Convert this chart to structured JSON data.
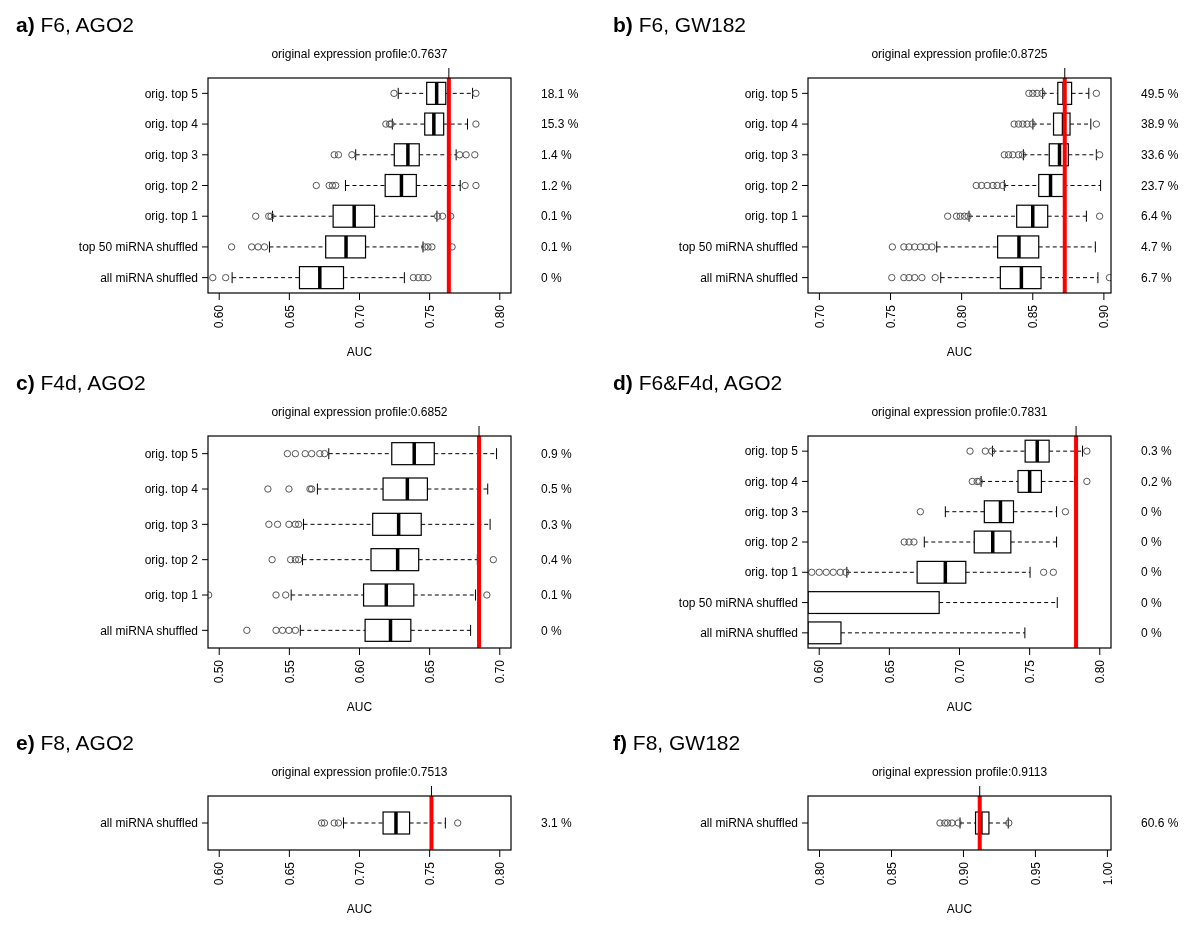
{
  "chart_data": [
    {
      "type": "box",
      "orientation": "horizontal",
      "title": "a) F6, AGO2",
      "subtitle": "original expression profile:0.7637",
      "xlabel": "AUC",
      "categories": [
        "orig. top 5",
        "orig. top 4",
        "orig. top 3",
        "orig. top 2",
        "orig. top 1",
        "top 50 miRNA shuffled",
        "all miRNA shuffled"
      ],
      "boxes": [
        {
          "low": 0.7276,
          "q1": 0.7479,
          "median": 0.755,
          "q3": 0.7615,
          "high": 0.7806,
          "outliers": [
            0.7246,
            0.783
          ]
        },
        {
          "low": 0.7234,
          "q1": 0.7465,
          "median": 0.753,
          "q3": 0.76,
          "high": 0.777,
          "outliers": [
            0.7188,
            0.7215,
            0.7225,
            0.783
          ]
        },
        {
          "low": 0.6973,
          "q1": 0.7248,
          "median": 0.7345,
          "q3": 0.7426,
          "high": 0.7689,
          "outliers": [
            0.682,
            0.685,
            0.6946,
            0.7714,
            0.776,
            0.7822
          ]
        },
        {
          "low": 0.69,
          "q1": 0.7183,
          "median": 0.7299,
          "q3": 0.7405,
          "high": 0.7718,
          "outliers": [
            0.6692,
            0.6784,
            0.6807,
            0.683,
            0.7753,
            0.783
          ]
        },
        {
          "low": 0.638,
          "q1": 0.6812,
          "median": 0.6962,
          "q3": 0.7107,
          "high": 0.7552,
          "outliers": [
            0.626,
            0.6353,
            0.6369,
            0.7557,
            0.7592,
            0.765
          ]
        },
        {
          "low": 0.6358,
          "q1": 0.6759,
          "median": 0.6904,
          "q3": 0.7043,
          "high": 0.7453,
          "outliers": [
            0.6088,
            0.6231,
            0.6277,
            0.6323,
            0.7465,
            0.7488,
            0.7516,
            0.766
          ]
        },
        {
          "low": 0.6092,
          "q1": 0.6572,
          "median": 0.6717,
          "q3": 0.6886,
          "high": 0.732,
          "outliers": [
            0.5954,
            0.6046,
            0.7384,
            0.7419,
            0.7453,
            0.7488
          ]
        }
      ],
      "xlim": [
        0.592,
        0.808
      ],
      "xticks": [
        {
          "value": 0.6,
          "label": "0.60"
        },
        {
          "value": 0.65,
          "label": "0.65"
        },
        {
          "value": 0.7,
          "label": "0.70"
        },
        {
          "value": 0.75,
          "label": "0.75"
        },
        {
          "value": 0.8,
          "label": "0.80"
        }
      ],
      "ref_lines": [
        {
          "axis": "x",
          "value": 0.7637,
          "color": "#ff0000"
        }
      ],
      "annotations": [
        "18.1 %",
        "15.3 %",
        "1.4 %",
        "1.2 %",
        "0.1 %",
        "0.1 %",
        "0 %"
      ]
    },
    {
      "type": "box",
      "orientation": "horizontal",
      "title": "b) F6, GW182",
      "subtitle": "original expression profile:0.8725",
      "xlabel": "AUC",
      "categories": [
        "orig. top 5",
        "orig. top 4",
        "orig. top 3",
        "orig. top 2",
        "orig. top 1",
        "top 50 miRNA shuffled",
        "all miRNA shuffled"
      ],
      "boxes": [
        {
          "low": 0.857,
          "q1": 0.8676,
          "median": 0.872,
          "q3": 0.8773,
          "high": 0.8894,
          "outliers": [
            0.8473,
            0.85,
            0.853,
            0.8565,
            0.8947
          ]
        },
        {
          "low": 0.8501,
          "q1": 0.8646,
          "median": 0.8716,
          "q3": 0.8762,
          "high": 0.8908,
          "outliers": [
            0.8369,
            0.84,
            0.843,
            0.846,
            0.8496,
            0.8947
          ]
        },
        {
          "low": 0.8434,
          "q1": 0.8616,
          "median": 0.8688,
          "q3": 0.875,
          "high": 0.8947,
          "outliers": [
            0.83,
            0.833,
            0.836,
            0.84,
            0.8427,
            0.897
          ]
        },
        {
          "low": 0.83,
          "q1": 0.8542,
          "median": 0.8625,
          "q3": 0.8716,
          "high": 0.8977,
          "outliers": [
            0.8103,
            0.814,
            0.818,
            0.822,
            0.825,
            0.8288
          ]
        },
        {
          "low": 0.8052,
          "q1": 0.8387,
          "median": 0.85,
          "q3": 0.8605,
          "high": 0.8877,
          "outliers": [
            0.7902,
            0.7964,
            0.799,
            0.802,
            0.8045,
            0.897
          ]
        },
        {
          "low": 0.7825,
          "q1": 0.8253,
          "median": 0.8403,
          "q3": 0.8542,
          "high": 0.894,
          "outliers": [
            0.7513,
            0.7594,
            0.763,
            0.767,
            0.771,
            0.775,
            0.7791
          ]
        },
        {
          "low": 0.7853,
          "q1": 0.8272,
          "median": 0.842,
          "q3": 0.8558,
          "high": 0.8958,
          "outliers": [
            0.7509,
            0.7594,
            0.763,
            0.767,
            0.7721,
            0.7814,
            0.9039
          ]
        }
      ],
      "xlim": [
        0.692,
        0.905
      ],
      "xticks": [
        {
          "value": 0.7,
          "label": "0.70"
        },
        {
          "value": 0.75,
          "label": "0.75"
        },
        {
          "value": 0.8,
          "label": "0.80"
        },
        {
          "value": 0.85,
          "label": "0.85"
        },
        {
          "value": 0.9,
          "label": "0.90"
        }
      ],
      "ref_lines": [
        {
          "axis": "x",
          "value": 0.8725,
          "color": "#ff0000"
        }
      ],
      "annotations": [
        "49.5 %",
        "38.9 %",
        "33.6 %",
        "23.7 %",
        "6.4 %",
        "4.7 %",
        "6.7 %"
      ]
    },
    {
      "type": "box",
      "orientation": "horizontal",
      "title": "c) F4d, AGO2",
      "subtitle": "original expression profile:0.6852",
      "xlabel": "AUC",
      "categories": [
        "orig. top 5",
        "orig. top 4",
        "orig. top 3",
        "orig. top 2",
        "orig. top 1",
        "all miRNA shuffled"
      ],
      "boxes": [
        {
          "low": 0.5781,
          "q1": 0.623,
          "median": 0.639,
          "q3": 0.6533,
          "high": 0.6977,
          "outliers": [
            0.5486,
            0.5543,
            0.5613,
            0.5659,
            0.5717,
            0.5751
          ]
        },
        {
          "low": 0.57,
          "q1": 0.6168,
          "median": 0.6341,
          "q3": 0.6484,
          "high": 0.6914,
          "outliers": [
            0.5347,
            0.5497,
            0.5647,
            0.5659
          ]
        },
        {
          "low": 0.5601,
          "q1": 0.6094,
          "median": 0.6279,
          "q3": 0.644,
          "high": 0.6931,
          "outliers": [
            0.5354,
            0.5416,
            0.5497,
            0.5543,
            0.5566
          ]
        },
        {
          "low": 0.5594,
          "q1": 0.6082,
          "median": 0.6272,
          "q3": 0.6422,
          "high": 0.684,
          "outliers": [
            0.5377,
            0.5509,
            0.5543,
            0.5566,
            0.6954
          ]
        },
        {
          "low": 0.5513,
          "q1": 0.6029,
          "median": 0.6191,
          "q3": 0.6387,
          "high": 0.6827,
          "outliers": [
            0.4925,
            0.5405,
            0.5474,
            0.6908
          ]
        },
        {
          "low": 0.5578,
          "q1": 0.604,
          "median": 0.6221,
          "q3": 0.6366,
          "high": 0.6792,
          "outliers": [
            0.5197,
            0.5405,
            0.5451,
            0.5497,
            0.5543
          ]
        }
      ],
      "xlim": [
        0.492,
        0.708
      ],
      "xticks": [
        {
          "value": 0.5,
          "label": "0.50"
        },
        {
          "value": 0.55,
          "label": "0.55"
        },
        {
          "value": 0.6,
          "label": "0.60"
        },
        {
          "value": 0.65,
          "label": "0.65"
        },
        {
          "value": 0.7,
          "label": "0.70"
        }
      ],
      "ref_lines": [
        {
          "axis": "x",
          "value": 0.6852,
          "color": "#ff0000"
        }
      ],
      "annotations": [
        "0.9 %",
        "0.5 %",
        "0.3 %",
        "0.4 %",
        "0.1 %",
        "0 %"
      ]
    },
    {
      "type": "box",
      "orientation": "horizontal",
      "title": "d) F6&F4d, AGO2",
      "subtitle": "original expression profile:0.7831",
      "xlabel": "AUC",
      "categories": [
        "orig. top 5",
        "orig. top 4",
        "orig. top 3",
        "orig. top 2",
        "orig. top 1",
        "top 50 miRNA shuffled",
        "all miRNA shuffled"
      ],
      "boxes": [
        {
          "low": 0.7235,
          "q1": 0.7468,
          "median": 0.7554,
          "q3": 0.7639,
          "high": 0.7877,
          "outliers": [
            0.7075,
            0.7184,
            0.723,
            0.7908
          ]
        },
        {
          "low": 0.7154,
          "q1": 0.7417,
          "median": 0.75,
          "q3": 0.7584,
          "high": 0.782,
          "outliers": [
            0.7091,
            0.7126,
            0.7142,
            0.7908
          ]
        },
        {
          "low": 0.6899,
          "q1": 0.7177,
          "median": 0.7292,
          "q3": 0.7385,
          "high": 0.7692,
          "outliers": [
            0.6721,
            0.7755
          ]
        },
        {
          "low": 0.6749,
          "q1": 0.7105,
          "median": 0.7237,
          "q3": 0.7366,
          "high": 0.7692,
          "outliers": [
            0.6606,
            0.664,
            0.6675
          ]
        },
        {
          "low": 0.6197,
          "q1": 0.6698,
          "median": 0.6899,
          "q3": 0.7045,
          "high": 0.7503,
          "outliers": [
            0.5947,
            0.6,
            0.605,
            0.61,
            0.615,
            0.619,
            0.76,
            0.7669
          ]
        },
        {
          "low": 0.592,
          "q1": 0.592,
          "q3": 0.6855,
          "high": 0.7697
        },
        {
          "low": 0.592,
          "q1": 0.592,
          "q3": 0.6155,
          "high": 0.7466
        }
      ],
      "xlim": [
        0.592,
        0.808
      ],
      "xticks": [
        {
          "value": 0.6,
          "label": "0.60"
        },
        {
          "value": 0.65,
          "label": "0.65"
        },
        {
          "value": 0.7,
          "label": "0.70"
        },
        {
          "value": 0.75,
          "label": "0.75"
        },
        {
          "value": 0.8,
          "label": "0.80"
        }
      ],
      "ref_lines": [
        {
          "axis": "x",
          "value": 0.7831,
          "color": "#ff0000"
        }
      ],
      "annotations": [
        "0.3 %",
        "0.2 %",
        "0 %",
        "0 %",
        "0 %",
        "0 %",
        "0 %"
      ]
    },
    {
      "type": "box",
      "orientation": "horizontal",
      "title": "e) F8, AGO2",
      "subtitle": "original expression profile:0.7513",
      "xlabel": "AUC",
      "categories": [
        "all miRNA shuffled"
      ],
      "boxes": [
        {
          "low": 0.6886,
          "q1": 0.7168,
          "median": 0.726,
          "q3": 0.7357,
          "high": 0.7612,
          "outliers": [
            0.673,
            0.675,
            0.682,
            0.685,
            0.77
          ]
        }
      ],
      "xlim": [
        0.592,
        0.808
      ],
      "xticks": [
        {
          "value": 0.6,
          "label": "0.60"
        },
        {
          "value": 0.65,
          "label": "0.65"
        },
        {
          "value": 0.7,
          "label": "0.70"
        },
        {
          "value": 0.75,
          "label": "0.75"
        },
        {
          "value": 0.8,
          "label": "0.80"
        }
      ],
      "ref_lines": [
        {
          "axis": "x",
          "value": 0.7513,
          "color": "#ff0000"
        }
      ],
      "annotations": [
        "3.1 %"
      ]
    },
    {
      "type": "box",
      "orientation": "horizontal",
      "title": "f) F8, GW182",
      "subtitle": "original expression profile:0.9113",
      "xlabel": "AUC",
      "categories": [
        "all miRNA shuffled"
      ],
      "boxes": [
        {
          "low": 0.8976,
          "q1": 0.9084,
          "median": 0.9121,
          "q3": 0.9177,
          "high": 0.9311,
          "outliers": [
            0.8837,
            0.887,
            0.889,
            0.892,
            0.8964,
            0.9315
          ]
        }
      ],
      "xlim": [
        0.792,
        1.0025
      ],
      "xticks": [
        {
          "value": 0.8,
          "label": "0.80"
        },
        {
          "value": 0.85,
          "label": "0.85"
        },
        {
          "value": 0.9,
          "label": "0.90"
        },
        {
          "value": 0.95,
          "label": "0.95"
        },
        {
          "value": 1.0,
          "label": "1.00"
        }
      ],
      "ref_lines": [
        {
          "axis": "x",
          "value": 0.9113,
          "color": "#ff0000"
        }
      ],
      "annotations": [
        "60.6 %"
      ]
    }
  ]
}
